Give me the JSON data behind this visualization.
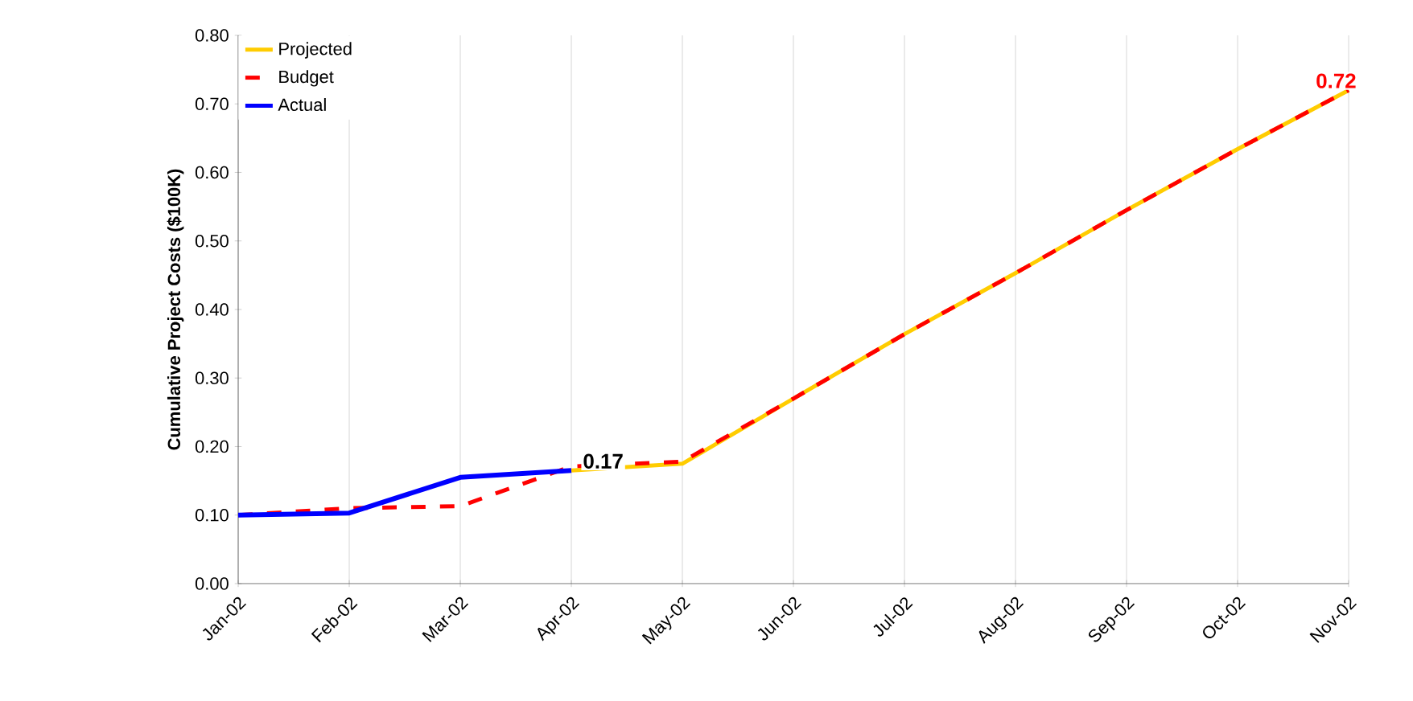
{
  "chart_data": {
    "type": "line",
    "ylabel": "Cumulative Project Costs ($100K)",
    "categories": [
      "Jan-02",
      "Feb-02",
      "Mar-02",
      "Apr-02",
      "May-02",
      "Jun-02",
      "Jul-02",
      "Aug-02",
      "Sep-02",
      "Oct-02",
      "Nov-02"
    ],
    "series": [
      {
        "name": "Projected",
        "color": "#ffcc00",
        "line_style": "solid",
        "values": [
          null,
          null,
          null,
          0.165,
          0.175,
          0.27,
          0.364,
          0.453,
          0.545,
          0.634,
          0.72
        ]
      },
      {
        "name": "Budget",
        "color": "#ff0000",
        "line_style": "dashed",
        "values": [
          0.1,
          0.11,
          0.113,
          0.171,
          0.178,
          0.27,
          0.364,
          0.453,
          0.545,
          0.634,
          0.72
        ],
        "value_labels": [
          null,
          null,
          null,
          null,
          null,
          null,
          null,
          null,
          null,
          null,
          "0.72"
        ]
      },
      {
        "name": "Actual",
        "color": "#0000ff",
        "line_style": "solid",
        "values": [
          0.1,
          0.103,
          0.155,
          0.165,
          null,
          null,
          null,
          null,
          null,
          null,
          null
        ],
        "value_labels": [
          null,
          null,
          null,
          "0.17",
          null,
          null,
          null,
          null,
          null,
          null,
          null
        ]
      }
    ],
    "ylim": [
      0,
      0.8
    ],
    "yticks": [
      {
        "value": 0,
        "label": "0.00"
      },
      {
        "value": 0.1,
        "label": "0.10"
      },
      {
        "value": 0.2,
        "label": "0.20"
      },
      {
        "value": 0.3,
        "label": "0.30"
      },
      {
        "value": 0.4,
        "label": "0.40"
      },
      {
        "value": 0.5,
        "label": "0.50"
      },
      {
        "value": 0.6,
        "label": "0.60"
      },
      {
        "value": 0.7,
        "label": "0.70"
      },
      {
        "value": 0.8,
        "label": "0.80"
      }
    ],
    "grid": "x",
    "legend": "top left",
    "marker": "none"
  }
}
